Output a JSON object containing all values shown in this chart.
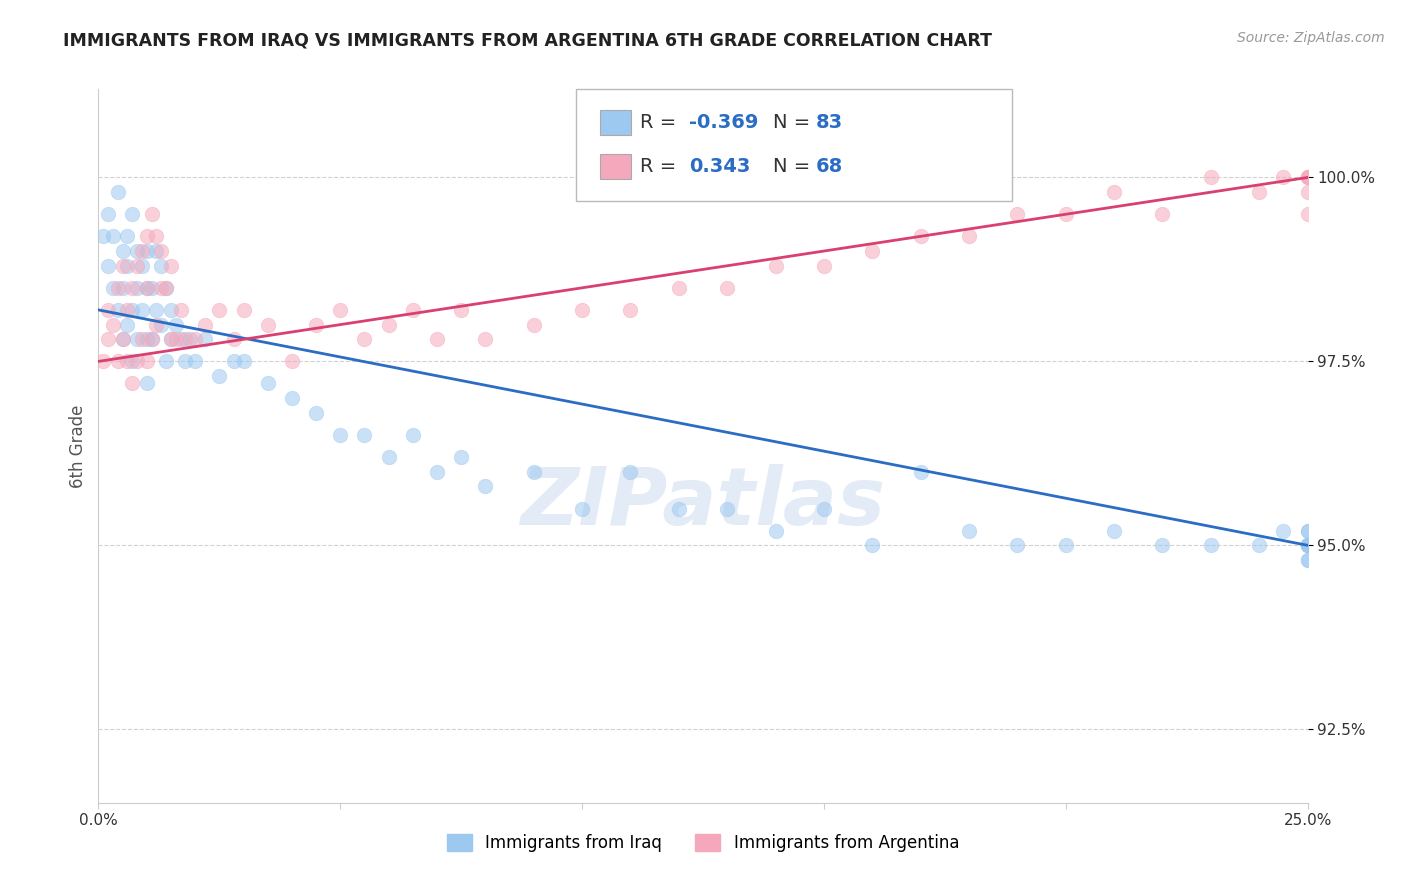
{
  "title": "IMMIGRANTS FROM IRAQ VS IMMIGRANTS FROM ARGENTINA 6TH GRADE CORRELATION CHART",
  "source": "Source: ZipAtlas.com",
  "ylabel": "6th Grade",
  "yticks": [
    92.5,
    95.0,
    97.5,
    100.0
  ],
  "xlim": [
    0.0,
    25.0
  ],
  "ylim": [
    91.5,
    101.2
  ],
  "iraq_R": -0.369,
  "iraq_N": 83,
  "argentina_R": 0.343,
  "argentina_N": 68,
  "iraq_color": "#9DC8F0",
  "argentina_color": "#F5A8BB",
  "iraq_line_color": "#2B6CC4",
  "argentina_line_color": "#D94070",
  "background_color": "#FFFFFF",
  "iraq_x": [
    0.1,
    0.2,
    0.2,
    0.3,
    0.3,
    0.4,
    0.4,
    0.5,
    0.5,
    0.5,
    0.6,
    0.6,
    0.6,
    0.7,
    0.7,
    0.7,
    0.8,
    0.8,
    0.8,
    0.9,
    0.9,
    1.0,
    1.0,
    1.0,
    1.0,
    1.1,
    1.1,
    1.2,
    1.2,
    1.3,
    1.3,
    1.4,
    1.4,
    1.5,
    1.5,
    1.6,
    1.7,
    1.8,
    1.9,
    2.0,
    2.2,
    2.5,
    2.8,
    3.0,
    3.5,
    4.0,
    4.5,
    5.0,
    5.5,
    6.0,
    6.5,
    7.0,
    7.5,
    8.0,
    9.0,
    10.0,
    11.0,
    12.0,
    13.0,
    14.0,
    15.0,
    16.0,
    17.0,
    18.0,
    19.0,
    20.0,
    21.0,
    22.0,
    23.0,
    24.0,
    24.5,
    25.0,
    25.0,
    25.0,
    25.0,
    25.0,
    25.0,
    25.0,
    25.0,
    25.0,
    25.0,
    25.0,
    25.0
  ],
  "iraq_y": [
    99.2,
    99.5,
    98.8,
    99.2,
    98.5,
    99.8,
    98.2,
    99.0,
    98.5,
    97.8,
    99.2,
    98.8,
    98.0,
    99.5,
    98.2,
    97.5,
    99.0,
    98.5,
    97.8,
    98.8,
    98.2,
    99.0,
    98.5,
    97.8,
    97.2,
    98.5,
    97.8,
    99.0,
    98.2,
    98.8,
    98.0,
    98.5,
    97.5,
    98.2,
    97.8,
    98.0,
    97.8,
    97.5,
    97.8,
    97.5,
    97.8,
    97.3,
    97.5,
    97.5,
    97.2,
    97.0,
    96.8,
    96.5,
    96.5,
    96.2,
    96.5,
    96.0,
    96.2,
    95.8,
    96.0,
    95.5,
    96.0,
    95.5,
    95.5,
    95.2,
    95.5,
    95.0,
    96.0,
    95.2,
    95.0,
    95.0,
    95.2,
    95.0,
    95.0,
    95.0,
    95.2,
    95.0,
    95.0,
    95.0,
    95.2,
    95.0,
    95.0,
    94.8,
    95.0,
    95.2,
    95.0,
    94.8,
    95.0
  ],
  "argentina_x": [
    0.1,
    0.2,
    0.2,
    0.3,
    0.4,
    0.4,
    0.5,
    0.5,
    0.6,
    0.6,
    0.7,
    0.7,
    0.8,
    0.8,
    0.9,
    0.9,
    1.0,
    1.0,
    1.0,
    1.1,
    1.1,
    1.2,
    1.2,
    1.3,
    1.3,
    1.4,
    1.5,
    1.5,
    1.6,
    1.7,
    1.8,
    2.0,
    2.2,
    2.5,
    2.8,
    3.0,
    3.5,
    4.0,
    4.5,
    5.0,
    5.5,
    6.0,
    6.5,
    7.0,
    7.5,
    8.0,
    9.0,
    10.0,
    11.0,
    12.0,
    13.0,
    14.0,
    15.0,
    16.0,
    17.0,
    18.0,
    19.0,
    20.0,
    21.0,
    22.0,
    23.0,
    24.0,
    24.5,
    25.0,
    25.0,
    25.0,
    25.0,
    25.0
  ],
  "argentina_y": [
    97.5,
    97.8,
    98.2,
    98.0,
    97.5,
    98.5,
    97.8,
    98.8,
    97.5,
    98.2,
    97.2,
    98.5,
    97.5,
    98.8,
    97.8,
    99.0,
    97.5,
    98.5,
    99.2,
    97.8,
    99.5,
    98.0,
    99.2,
    98.5,
    99.0,
    98.5,
    97.8,
    98.8,
    97.8,
    98.2,
    97.8,
    97.8,
    98.0,
    98.2,
    97.8,
    98.2,
    98.0,
    97.5,
    98.0,
    98.2,
    97.8,
    98.0,
    98.2,
    97.8,
    98.2,
    97.8,
    98.0,
    98.2,
    98.2,
    98.5,
    98.5,
    98.8,
    98.8,
    99.0,
    99.2,
    99.2,
    99.5,
    99.5,
    99.8,
    99.5,
    100.0,
    99.8,
    100.0,
    100.0,
    99.5,
    99.8,
    100.0,
    100.0
  ]
}
